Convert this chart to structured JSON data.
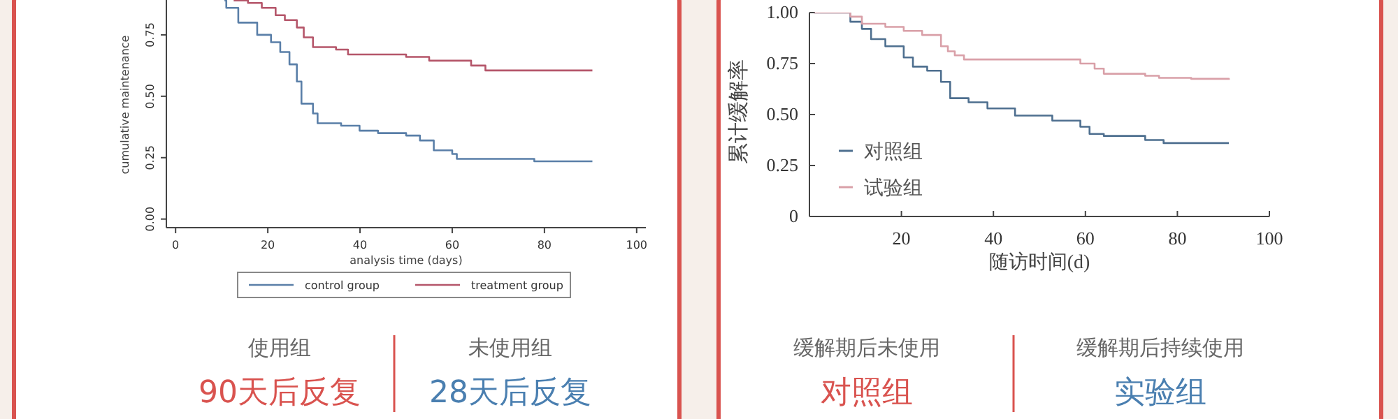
{
  "chart_data": [
    {
      "type": "step",
      "xlabel": "analysis time (days)",
      "ylabel": "cumulative maintenance",
      "xlim": [
        -2,
        102
      ],
      "ylim": [
        -0.035,
        1
      ],
      "xticks": [
        0,
        20,
        40,
        60,
        80,
        100
      ],
      "yticks": [
        {
          "value": 0,
          "label": "0.00"
        },
        {
          "value": 0.25,
          "label": "0.25"
        },
        {
          "value": 0.5,
          "label": "0.50"
        },
        {
          "value": 0.75,
          "label": "0.75"
        }
      ],
      "grid": false,
      "legend": "bottom",
      "series": [
        {
          "name": "control group",
          "color": "#5a7fa8",
          "x": [
            10.6,
            11,
            13.6,
            17.7,
            20.7,
            22.7,
            24.7,
            26.3,
            27.3,
            29.8,
            30.8,
            35.9,
            39.9,
            43.9,
            50,
            53,
            56,
            60,
            61,
            77.8,
            90.4
          ],
          "values": [
            0.89,
            0.86,
            0.8,
            0.75,
            0.72,
            0.68,
            0.63,
            0.56,
            0.47,
            0.43,
            0.39,
            0.38,
            0.36,
            0.35,
            0.34,
            0.32,
            0.28,
            0.265,
            0.245,
            0.235,
            0.235
          ]
        },
        {
          "name": "treatment group",
          "color": "#b5566a",
          "x": [
            12.6,
            15.7,
            18.7,
            21.7,
            23.7,
            26.3,
            27.8,
            29.8,
            34.8,
            37.4,
            50,
            55,
            64.1,
            67.2,
            90.4
          ],
          "values": [
            0.89,
            0.88,
            0.86,
            0.83,
            0.81,
            0.78,
            0.74,
            0.7,
            0.69,
            0.67,
            0.66,
            0.645,
            0.625,
            0.605,
            0.605
          ]
        }
      ],
      "annotations": [
        "使用组",
        "90天后反复",
        "未使用组",
        "28天后反复"
      ]
    },
    {
      "type": "step",
      "xlabel": "随访时间(d)",
      "ylabel": "累计缓解率",
      "xlim": [
        0,
        100
      ],
      "ylim": [
        0,
        1
      ],
      "xticks": [
        20,
        40,
        60,
        80,
        100
      ],
      "yticks": [
        0,
        0.25,
        {
          "value": 0.5,
          "label": "0.50"
        },
        0.75,
        {
          "value": 1,
          "label": "1.00"
        }
      ],
      "grid": false,
      "legend": "bottom left",
      "series": [
        {
          "name": "对照组",
          "color": "#4e6f8f",
          "x": [
            1,
            8.9,
            11.4,
            13.4,
            16.5,
            20.5,
            22.5,
            25.6,
            28.6,
            30.6,
            34.6,
            38.7,
            44.7,
            52.8,
            58.9,
            60.9,
            64,
            73,
            77,
            91.2
          ],
          "values": [
            1,
            0.955,
            0.92,
            0.87,
            0.835,
            0.78,
            0.735,
            0.715,
            0.66,
            0.58,
            0.56,
            0.53,
            0.495,
            0.47,
            0.44,
            0.405,
            0.395,
            0.375,
            0.36,
            0.36
          ]
        },
        {
          "name": "试验组",
          "color": "#d9a0a8",
          "x": [
            1,
            8.9,
            11.4,
            16.5,
            20.5,
            24.5,
            28.6,
            30.1,
            31.6,
            33.6,
            58.9,
            62,
            64,
            73,
            76,
            83,
            91.2
          ],
          "values": [
            1,
            0.98,
            0.945,
            0.93,
            0.91,
            0.89,
            0.835,
            0.81,
            0.79,
            0.77,
            0.75,
            0.725,
            0.7,
            0.69,
            0.68,
            0.675,
            0.67
          ]
        }
      ],
      "annotations": [
        "缓解期后未使用",
        "对照组",
        "缓解期后持续使用",
        "实验组"
      ]
    }
  ]
}
